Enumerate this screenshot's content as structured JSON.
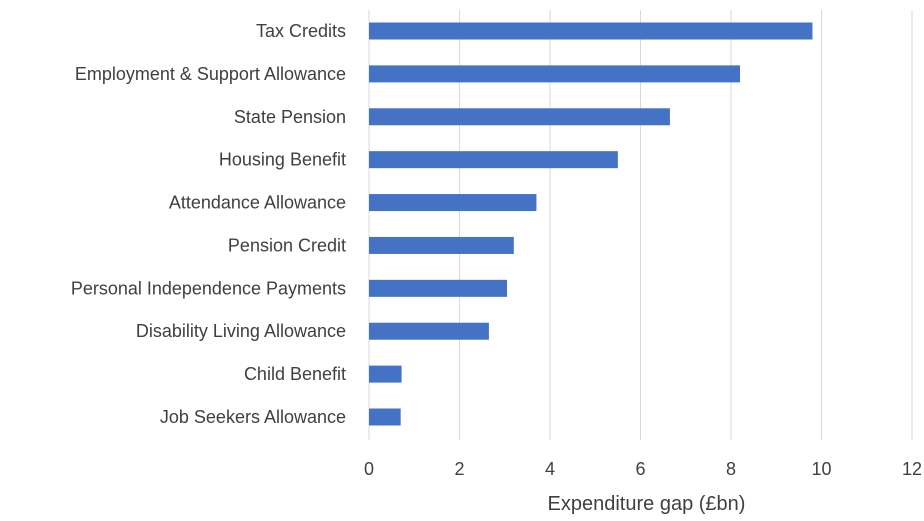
{
  "chart_data": {
    "type": "bar",
    "orientation": "horizontal",
    "categories": [
      "Tax Credits",
      "Employment & Support Allowance",
      "State Pension",
      "Housing Benefit",
      "Attendance Allowance",
      "Pension Credit",
      "Personal Independence Payments",
      "Disability Living Allowance ",
      "Child Benefit",
      "Job Seekers Allowance"
    ],
    "values": [
      9.8,
      8.2,
      6.65,
      5.5,
      3.7,
      3.2,
      3.05,
      2.65,
      0.72,
      0.7
    ],
    "title": "",
    "xlabel": "Expenditure gap (£bn)",
    "ylabel": "",
    "xlim": [
      0,
      12
    ],
    "xticks": [
      "0",
      "2",
      "4",
      "6",
      "8",
      "10",
      "12"
    ],
    "grid": "vertical",
    "bar_color": "#4472c4"
  }
}
